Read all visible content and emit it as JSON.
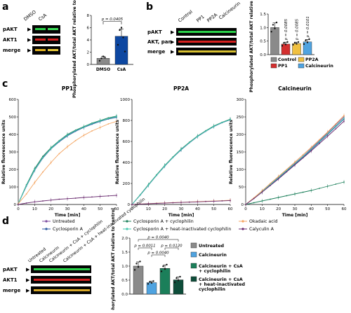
{
  "panels": {
    "a": {
      "letter": "a",
      "lanes": [
        "DMSO",
        "CsA"
      ],
      "rows": [
        "pAKT",
        "AKT1",
        "merge"
      ],
      "chart": {
        "ylabel": "Phosphorylated AKT/total AKT relative to control",
        "categories": [
          "DMSO",
          "CsA"
        ],
        "values": [
          1.0,
          4.6
        ],
        "errors": [
          0.3,
          1.2
        ],
        "points": [
          [
            0.6,
            1.0,
            1.3,
            1.1
          ],
          [
            3.2,
            5.6,
            6.0,
            4.4,
            2.1
          ]
        ],
        "yticks": [
          "0",
          "2",
          "4",
          "6",
          "8"
        ],
        "ylim": [
          0,
          8
        ],
        "pvalues": [
          {
            "text": "p = 0.0405",
            "from": 0,
            "to": 1
          }
        ],
        "colors": [
          "#8a8a8a",
          "#0d47a1"
        ]
      }
    },
    "b": {
      "letter": "b",
      "lanes": [
        "Control",
        "PP1",
        "PP2A",
        "Calcineurin"
      ],
      "rows": [
        "pAKT",
        "AKT, pan",
        "merge"
      ],
      "chart": {
        "ylabel": "Phosphorylated AKT/total AKT relative to control",
        "categories": [
          "Control",
          "PP1",
          "PP2A",
          "Calcineurin"
        ],
        "values": [
          1.0,
          0.39,
          0.41,
          0.47
        ],
        "errors": [
          0.17,
          0.07,
          0.05,
          0.09
        ],
        "yticks": [
          "0.0",
          "0.5",
          "1.0",
          "1.5"
        ],
        "ylim": [
          0,
          1.5
        ],
        "pvalues": [
          "p = 0.0085",
          "p = 0.0085",
          "p = 0.0101"
        ],
        "colors": [
          "#8a8a8a",
          "#d32f2f",
          "#f0c040",
          "#4fa3e0"
        ],
        "legend": [
          "Control",
          "PP2A",
          "PP1",
          "Calcineurin"
        ]
      }
    },
    "c": {
      "letter": "c",
      "xlabel": "Time [min]",
      "ylabel": "Relative fluorescence units",
      "xticks": [
        "0",
        "10",
        "20",
        "30",
        "40",
        "50",
        "60"
      ],
      "legend": [
        {
          "name": "Untreated",
          "color": "#7b4b9e"
        },
        {
          "name": "Cyclosporin A + cyclophilin",
          "color": "#1b7f5a"
        },
        {
          "name": "Okadaic acid",
          "color": "#f4a460"
        },
        {
          "name": "Cyclosporin A",
          "color": "#2c5aa0"
        },
        {
          "name": "Cyclosporin A + heat-inactivated cyclophilin",
          "color": "#48c9b0"
        },
        {
          "name": "Calyculin A",
          "color": "#6a2c70"
        }
      ]
    },
    "d": {
      "letter": "d",
      "lanes": [
        "Untreated",
        "Calcineurin",
        "Calcineurin + CsA + cyclophilin",
        "Calcineurin + CsA + heat-inactivated cyclophilin"
      ],
      "rows": [
        "pAKT",
        "AKT1",
        "merge"
      ],
      "chart": {
        "ylabel": "Phosphorylated AKT/total AKT relative to control",
        "categories": [
          "Untreated",
          "Calcineurin",
          "Calcineurin + CsA + cyclophilin",
          "Calcineurin + CsA + heat-inactivated cyclophilin"
        ],
        "values": [
          1.0,
          0.41,
          0.92,
          0.51
        ],
        "errors": [
          0.15,
          0.05,
          0.12,
          0.1
        ],
        "yticks": [
          "0.0",
          "0.5",
          "1.0",
          "1.5",
          "2.0"
        ],
        "ylim": [
          0,
          2.0
        ],
        "pvalues": [
          "p = 0.0040",
          "p = 0.0011",
          "p = 0.0120",
          "p = 0.0040"
        ],
        "colors": [
          "#8a8a8a",
          "#4fa3e0",
          "#1b7f5a",
          "#0e4d3a"
        ],
        "legend": [
          "Untreated",
          "Calcineurin",
          "Calcineurin + CsA + cyclophilin",
          "Calcineurin + CsA + heat-inactivated cyclophilin"
        ]
      }
    }
  },
  "chart_data": [
    {
      "type": "bar",
      "title": "",
      "categories": [
        "DMSO",
        "CsA"
      ],
      "values": [
        1.0,
        4.6
      ],
      "ylabel": "Phosphorylated AKT/total AKT relative to control",
      "ylim": [
        0,
        8
      ]
    },
    {
      "type": "bar",
      "title": "",
      "categories": [
        "Control",
        "PP1",
        "PP2A",
        "Calcineurin"
      ],
      "values": [
        1.0,
        0.39,
        0.41,
        0.47
      ],
      "ylabel": "Phosphorylated AKT/total AKT relative to control",
      "ylim": [
        0,
        1.5
      ]
    },
    {
      "type": "line",
      "title": "PP1",
      "xlabel": "Time [min]",
      "ylabel": "Relative fluorescence units",
      "x": [
        0,
        5,
        10,
        15,
        20,
        25,
        30,
        35,
        40,
        45,
        50,
        55,
        60
      ],
      "ylim": [
        0,
        600
      ],
      "yticks": [
        "0",
        "100",
        "200",
        "300",
        "400",
        "500",
        "600"
      ],
      "series": [
        {
          "name": "Untreated",
          "values": [
            5,
            110,
            200,
            270,
            320,
            360,
            395,
            420,
            440,
            460,
            475,
            490,
            500
          ]
        },
        {
          "name": "Cyclosporin A",
          "values": [
            5,
            105,
            195,
            265,
            318,
            358,
            392,
            418,
            440,
            458,
            474,
            488,
            498
          ]
        },
        {
          "name": "Cyclosporin A + cyclophilin",
          "values": [
            5,
            112,
            205,
            275,
            325,
            365,
            400,
            425,
            445,
            465,
            480,
            495,
            505
          ]
        },
        {
          "name": "Cyclosporin A + heat-inactivated cyclophilin",
          "values": [
            5,
            108,
            198,
            268,
            320,
            362,
            396,
            422,
            442,
            462,
            477,
            491,
            502
          ]
        },
        {
          "name": "Okadaic acid",
          "values": [
            5,
            60,
            125,
            185,
            240,
            290,
            330,
            365,
            395,
            420,
            440,
            460,
            475
          ]
        },
        {
          "name": "Calyculin A",
          "values": [
            0,
            8,
            15,
            20,
            25,
            30,
            33,
            36,
            40,
            43,
            46,
            49,
            52
          ]
        }
      ]
    },
    {
      "type": "line",
      "title": "PP2A",
      "xlabel": "Time [min]",
      "ylabel": "Relative fluorescence units",
      "x": [
        0,
        5,
        10,
        15,
        20,
        25,
        30,
        35,
        40,
        45,
        50,
        55,
        60
      ],
      "ylim": [
        0,
        1000
      ],
      "yticks": [
        "0",
        "200",
        "400",
        "600",
        "800",
        "1000"
      ],
      "series": [
        {
          "name": "Untreated",
          "values": [
            0,
            90,
            185,
            280,
            370,
            450,
            525,
            590,
            650,
            700,
            745,
            780,
            810
          ]
        },
        {
          "name": "Cyclosporin A",
          "values": [
            0,
            88,
            182,
            276,
            365,
            446,
            520,
            586,
            646,
            696,
            742,
            778,
            806
          ]
        },
        {
          "name": "Cyclosporin A + cyclophilin",
          "values": [
            0,
            92,
            188,
            282,
            372,
            452,
            528,
            592,
            652,
            702,
            748,
            782,
            812
          ]
        },
        {
          "name": "Cyclosporin A + heat-inactivated cyclophilin",
          "values": [
            0,
            90,
            184,
            278,
            368,
            448,
            524,
            588,
            648,
            698,
            744,
            780,
            808
          ]
        },
        {
          "name": "Okadaic acid",
          "values": [
            0,
            5,
            8,
            12,
            15,
            18,
            21,
            24,
            27,
            30,
            33,
            36,
            40
          ]
        },
        {
          "name": "Calyculin A",
          "values": [
            0,
            4,
            7,
            10,
            13,
            16,
            19,
            22,
            25,
            28,
            31,
            34,
            37
          ]
        }
      ]
    },
    {
      "type": "line",
      "title": "Calcineurin",
      "xlabel": "Time [min]",
      "ylabel": "Relative fluorescence units",
      "x": [
        0,
        5,
        10,
        15,
        20,
        25,
        30,
        35,
        40,
        45,
        50,
        55,
        60
      ],
      "ylim": [
        0,
        300
      ],
      "yticks": [
        "0",
        "50",
        "100",
        "150",
        "200",
        "250",
        "300"
      ],
      "series": [
        {
          "name": "Untreated",
          "values": [
            0,
            18,
            38,
            58,
            78,
            98,
            118,
            138,
            160,
            182,
            205,
            228,
            250
          ]
        },
        {
          "name": "Cyclosporin A",
          "values": [
            0,
            17,
            36,
            56,
            75,
            95,
            115,
            135,
            156,
            178,
            200,
            222,
            244
          ]
        },
        {
          "name": "Cyclosporin A + cyclophilin",
          "values": [
            0,
            5,
            10,
            15,
            20,
            25,
            30,
            35,
            40,
            46,
            52,
            58,
            64
          ]
        },
        {
          "name": "Cyclosporin A + heat-inactivated cyclophilin",
          "values": [
            0,
            18,
            37,
            57,
            77,
            97,
            117,
            137,
            158,
            180,
            202,
            224,
            246
          ]
        },
        {
          "name": "Okadaic acid",
          "values": [
            0,
            19,
            39,
            60,
            80,
            100,
            121,
            142,
            163,
            185,
            207,
            230,
            254
          ]
        },
        {
          "name": "Calyculin A",
          "values": [
            0,
            17,
            35,
            54,
            73,
            93,
            113,
            133,
            153,
            174,
            195,
            216,
            238
          ]
        }
      ]
    },
    {
      "type": "bar",
      "title": "",
      "categories": [
        "Untreated",
        "Calcineurin",
        "Calcineurin + CsA + cyclophilin",
        "Calcineurin + CsA + heat-inactivated cyclophilin"
      ],
      "values": [
        1.0,
        0.41,
        0.92,
        0.51
      ],
      "ylabel": "Phosphorylated AKT/total AKT relative to control",
      "ylim": [
        0,
        2.0
      ]
    }
  ]
}
